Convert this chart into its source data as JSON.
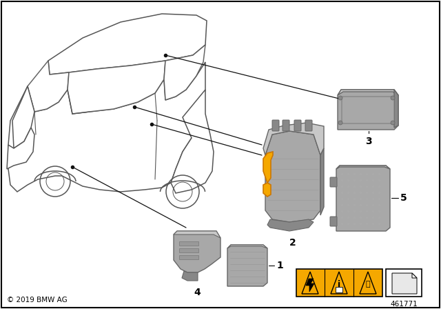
{
  "bg_color": "#ffffff",
  "border_color": "#000000",
  "copyright_text": "© 2019 BMW AG",
  "part_number": "461771",
  "warning_bg": "#f5a800",
  "component_orange": "#f5a800",
  "component_gray_light": "#c8c8c8",
  "component_gray_mid": "#a8a8a8",
  "component_gray_dark": "#888888",
  "line_color": "#333333",
  "car_line_color": "#555555",
  "callout_line_color": "#111111"
}
